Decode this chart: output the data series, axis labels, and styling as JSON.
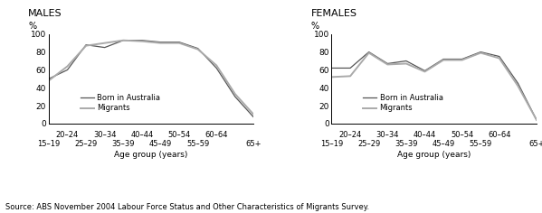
{
  "x_positions": [
    0,
    1,
    2,
    3,
    4,
    5,
    6,
    7,
    8,
    9,
    10,
    11
  ],
  "males_australia": [
    50,
    60,
    88,
    85,
    93,
    93,
    91,
    91,
    84,
    62,
    30,
    7
  ],
  "males_migrants": [
    48,
    64,
    87,
    90,
    93,
    92,
    90,
    90,
    83,
    65,
    33,
    10
  ],
  "females_australia": [
    62,
    62,
    80,
    67,
    70,
    59,
    72,
    72,
    80,
    75,
    45,
    4
  ],
  "females_migrants": [
    52,
    53,
    79,
    66,
    67,
    58,
    71,
    71,
    79,
    73,
    42,
    4
  ],
  "color_australia": "#555555",
  "color_migrants": "#aaaaaa",
  "ylim": [
    0,
    100
  ],
  "yticks": [
    0,
    20,
    40,
    60,
    80,
    100
  ],
  "title_males": "MALES",
  "title_females": "FEMALES",
  "ylabel": "%",
  "xlabel": "Age group (years)",
  "source": "Source: ABS November 2004 Labour Force Status and Other Characteristics of Migrants Survey.",
  "legend_born": "Born in Australia",
  "legend_migrants": "Migrants",
  "top_positions": [
    1,
    3,
    5,
    7,
    9
  ],
  "top_labels": [
    "20–24",
    "30–34",
    "40–44",
    "50–54",
    "60–64"
  ],
  "bot_positions": [
    0,
    2,
    4,
    6,
    8,
    11
  ],
  "bot_labels": [
    "15–19",
    "25–29",
    "35–39",
    "45–49",
    "55–59",
    "65+"
  ]
}
